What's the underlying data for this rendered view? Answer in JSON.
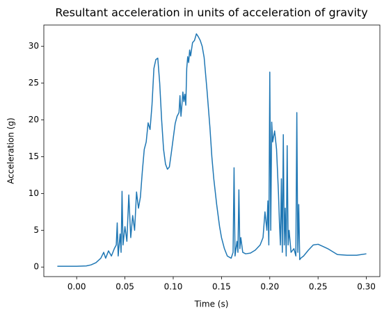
{
  "chart_data": {
    "type": "line",
    "title": "Resultant acceleration in units of acceleration of gravity",
    "x_label": "Time (s)",
    "y_label": "Acceleration (g)",
    "xlim": [
      -0.034,
      0.314
    ],
    "ylim": [
      -1.3,
      32.9
    ],
    "xticks": [
      {
        "value": 0,
        "label": "0.00"
      },
      {
        "value": 0.05,
        "label": "0.05"
      },
      {
        "value": 0.1,
        "label": "0.10"
      },
      {
        "value": 0.15,
        "label": "0.15"
      },
      {
        "value": 0.2,
        "label": "0.20"
      },
      {
        "value": 0.25,
        "label": "0.25"
      },
      {
        "value": 0.3,
        "label": "0.30"
      }
    ],
    "yticks": [
      0,
      5,
      10,
      15,
      20,
      25,
      30
    ],
    "series": [
      {
        "color": "#1f77b4",
        "x": [
          -0.02,
          -0.01,
          0,
          0.01,
          0.015,
          0.02,
          0.025,
          0.028,
          0.03,
          0.033,
          0.036,
          0.039,
          0.041,
          0.042,
          0.043,
          0.045,
          0.046,
          0.047,
          0.048,
          0.05,
          0.052,
          0.054,
          0.056,
          0.058,
          0.06,
          0.062,
          0.064,
          0.066,
          0.068,
          0.07,
          0.072,
          0.074,
          0.076,
          0.078,
          0.08,
          0.082,
          0.084,
          0.086,
          0.088,
          0.09,
          0.092,
          0.094,
          0.096,
          0.098,
          0.1,
          0.102,
          0.104,
          0.106,
          0.107,
          0.108,
          0.109,
          0.11,
          0.111,
          0.112,
          0.113,
          0.114,
          0.115,
          0.116,
          0.117,
          0.118,
          0.12,
          0.122,
          0.124,
          0.126,
          0.128,
          0.13,
          0.132,
          0.135,
          0.138,
          0.14,
          0.142,
          0.145,
          0.148,
          0.15,
          0.153,
          0.156,
          0.16,
          0.162,
          0.163,
          0.164,
          0.166,
          0.167,
          0.168,
          0.169,
          0.17,
          0.172,
          0.175,
          0.18,
          0.185,
          0.19,
          0.193,
          0.195,
          0.197,
          0.198,
          0.199,
          0.2,
          0.201,
          0.202,
          0.203,
          0.205,
          0.207,
          0.209,
          0.21,
          0.211,
          0.212,
          0.213,
          0.214,
          0.215,
          0.216,
          0.217,
          0.218,
          0.219,
          0.22,
          0.222,
          0.225,
          0.227,
          0.228,
          0.229,
          0.23,
          0.231,
          0.232,
          0.235,
          0.24,
          0.245,
          0.25,
          0.255,
          0.26,
          0.265,
          0.27,
          0.28,
          0.29,
          0.3
        ],
        "values": [
          0.1,
          0.1,
          0.1,
          0.15,
          0.3,
          0.6,
          1.2,
          2,
          1.2,
          2.2,
          1.5,
          2.5,
          3,
          6,
          1.5,
          4.5,
          2,
          10.3,
          3,
          5.5,
          3.5,
          9.8,
          4,
          7,
          5,
          10.2,
          8,
          9.5,
          13,
          16,
          17,
          19.6,
          18.7,
          22,
          27,
          28.2,
          28.4,
          25,
          20,
          16,
          14,
          13.3,
          13.6,
          15.5,
          17.5,
          19.5,
          20.5,
          21,
          23.3,
          20.5,
          22,
          23.8,
          22.5,
          23.5,
          22,
          27,
          28.6,
          27.8,
          29.5,
          28.7,
          30.5,
          30.8,
          31.7,
          31.3,
          30.8,
          30,
          28.5,
          24,
          19,
          15,
          12,
          8.5,
          5.5,
          4,
          2.5,
          1.5,
          1.2,
          2,
          13.5,
          1.5,
          3.5,
          2,
          10.5,
          2.5,
          4,
          2,
          1.8,
          1.9,
          2.3,
          3,
          4,
          7.5,
          5,
          9,
          3,
          26.5,
          5,
          19.7,
          17,
          18.5,
          16,
          10,
          6,
          3,
          12,
          2,
          18,
          3,
          8,
          1.5,
          16.5,
          3,
          5,
          2,
          2.5,
          1.5,
          21,
          2,
          8.5,
          1,
          1.2,
          1.5,
          2.3,
          3,
          3.1,
          2.8,
          2.5,
          2.1,
          1.7,
          1.6,
          1.6,
          1.8
        ]
      }
    ]
  }
}
